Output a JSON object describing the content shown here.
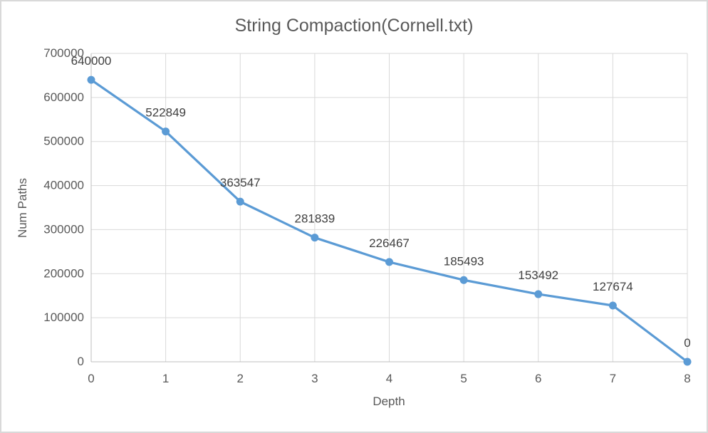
{
  "chart_data": {
    "type": "line",
    "title": "String Compaction(Cornell.txt)",
    "xlabel": "Depth",
    "ylabel": "Num Paths",
    "x": [
      0,
      1,
      2,
      3,
      4,
      5,
      6,
      7,
      8
    ],
    "series": [
      {
        "name": "Num Paths",
        "values": [
          640000,
          522849,
          363547,
          281839,
          226467,
          185493,
          153492,
          127674,
          0
        ],
        "color": "#5B9BD5"
      }
    ],
    "data_labels": [
      "640000",
      "522849",
      "363547",
      "281839",
      "226467",
      "185493",
      "153492",
      "127674",
      "0"
    ],
    "xticks": [
      "0",
      "1",
      "2",
      "3",
      "4",
      "5",
      "6",
      "7",
      "8"
    ],
    "yticks": [
      "0",
      "100000",
      "200000",
      "300000",
      "400000",
      "500000",
      "600000",
      "700000"
    ],
    "xlim": [
      0,
      8
    ],
    "ylim": [
      0,
      700000
    ],
    "grid": true,
    "legend": "none",
    "marker": "circle",
    "colors": {
      "grid": "#D9D9D9",
      "axis": "#BFBFBF",
      "tick_text": "#595959",
      "title_text": "#595959",
      "data_label_text": "#404040",
      "background": "#FFFFFF",
      "frame_border": "#D9D9D9"
    }
  }
}
